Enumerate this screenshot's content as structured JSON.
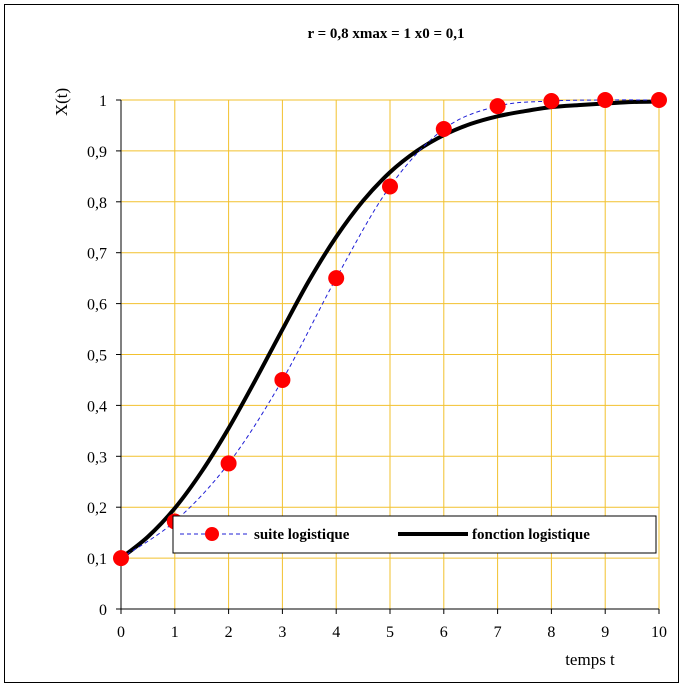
{
  "chart_data": {
    "type": "line",
    "title": "r = 0,8   xmax = 1    x0 = 0,1",
    "xlabel": "temps t",
    "ylabel": "X(t)",
    "xlim": [
      0,
      10
    ],
    "ylim": [
      0,
      1
    ],
    "x_ticks": [
      "0",
      "1",
      "2",
      "3",
      "4",
      "5",
      "6",
      "7",
      "8",
      "9",
      "10"
    ],
    "y_ticks": [
      "0",
      "0,1",
      "0,2",
      "0,3",
      "0,4",
      "0,5",
      "0,6",
      "0,7",
      "0,8",
      "0,9",
      "1"
    ],
    "grid": true,
    "grid_color": "#f2c12e",
    "legend_position": "bottom-right",
    "series": [
      {
        "name": "suite logistique",
        "style": "dashed line with markers",
        "color": "#1f1fd6",
        "marker_color": "#ff0000",
        "x": [
          0,
          1,
          2,
          3,
          4,
          5,
          6,
          7,
          8,
          9,
          10
        ],
        "values": [
          0.1,
          0.172,
          0.286,
          0.45,
          0.65,
          0.83,
          0.943,
          0.988,
          0.998,
          1.0,
          1.0
        ]
      },
      {
        "name": "fonction logistique",
        "style": "thick solid line",
        "color": "#000000",
        "x": [
          0,
          0.5,
          1,
          1.5,
          2,
          2.5,
          3,
          3.5,
          4,
          4.5,
          5,
          5.5,
          6,
          6.5,
          7,
          7.5,
          8,
          8.5,
          9,
          9.5,
          10
        ],
        "values": [
          0.1,
          0.142,
          0.198,
          0.27,
          0.355,
          0.45,
          0.549,
          0.646,
          0.731,
          0.802,
          0.858,
          0.9,
          0.931,
          0.953,
          0.968,
          0.978,
          0.986,
          0.99,
          0.993,
          0.996,
          0.997
        ]
      }
    ]
  }
}
